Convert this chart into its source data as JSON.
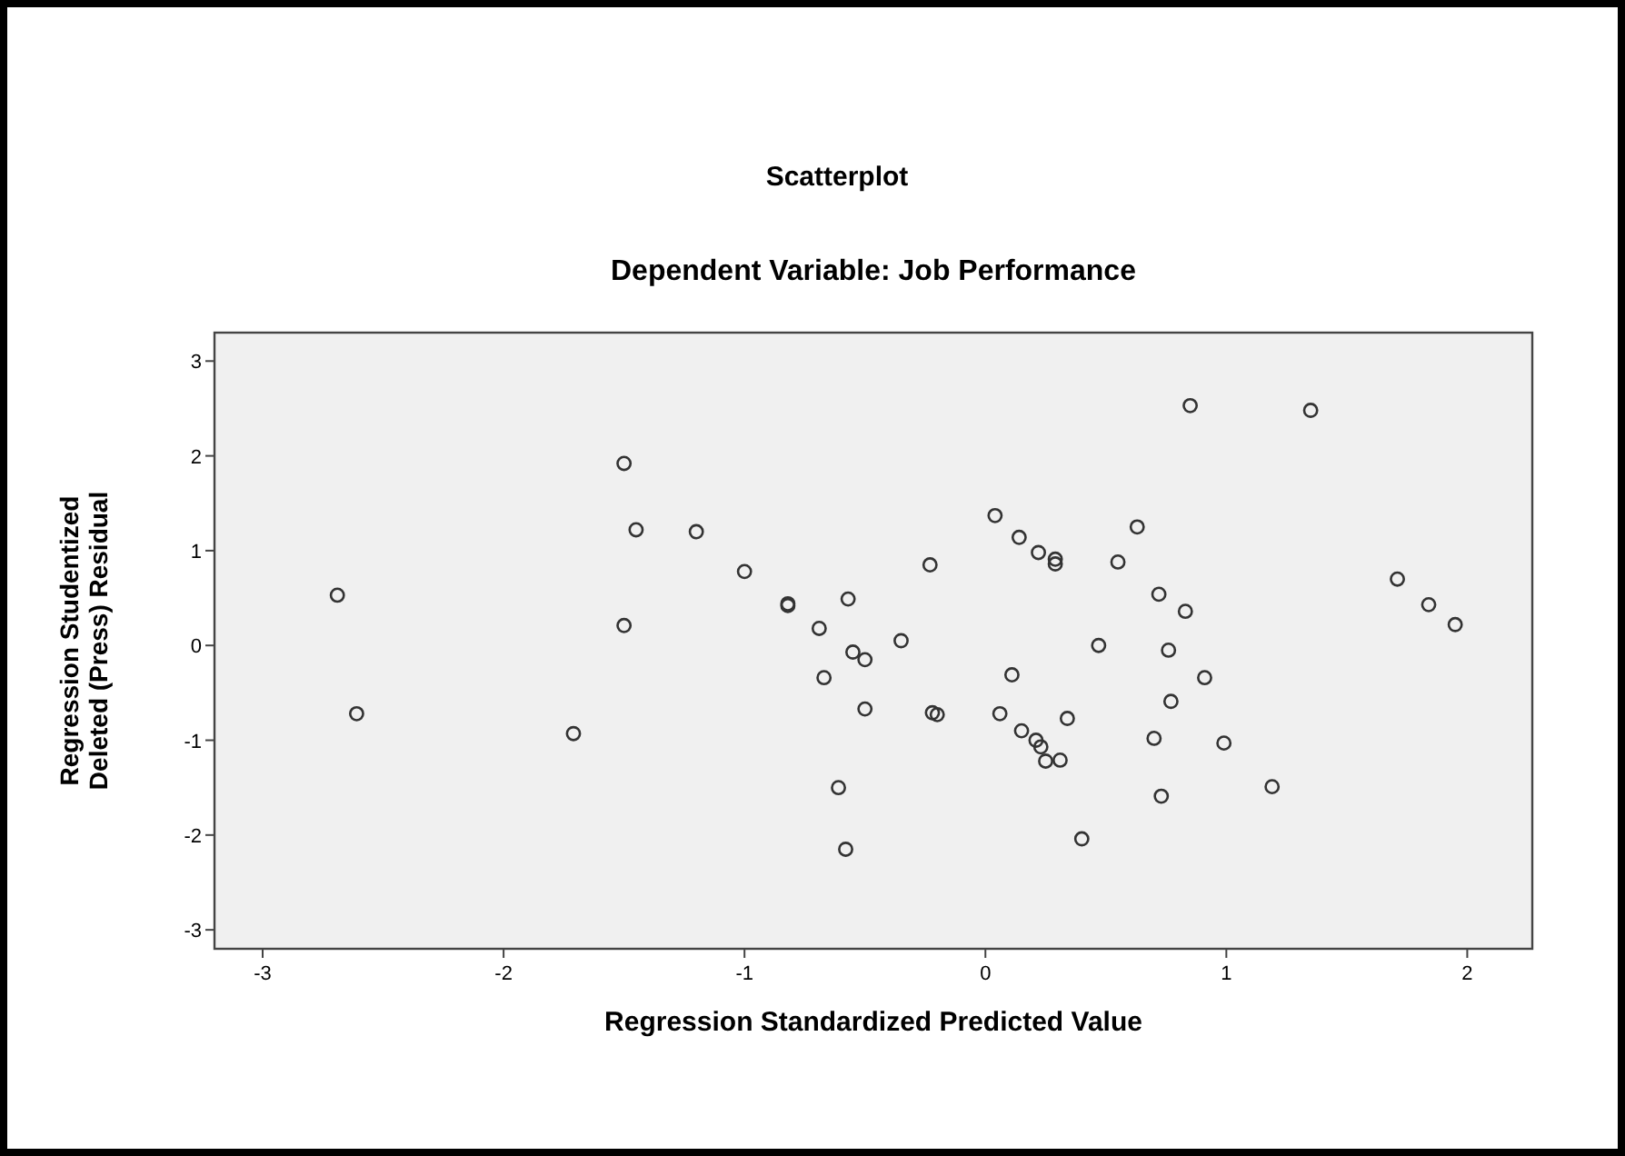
{
  "chart_data": {
    "type": "scatter",
    "title": "Scatterplot",
    "subtitle": "Dependent Variable: Job Performance",
    "xlabel": "Regression Standardized Predicted Value",
    "ylabel": "Regression Studentized Deleted (Press) Residual",
    "xlim": [
      -3.2,
      2.27
    ],
    "ylim": [
      -3.2,
      3.3
    ],
    "xticks": [
      -3,
      -2,
      -1,
      0,
      1,
      2
    ],
    "yticks": [
      -3,
      -2,
      -1,
      0,
      1,
      2,
      3
    ],
    "grid": false,
    "marker": "circle",
    "series": [
      {
        "color": "#333333",
        "x": [
          -2.69,
          -2.61,
          -1.71,
          -1.5,
          -1.45,
          -1.2,
          -1.0,
          -1.5,
          0.04,
          0.14,
          0.22,
          0.29,
          0.29,
          0.63,
          0.55,
          -0.23,
          -0.82,
          -0.82,
          -0.57,
          -0.69,
          -0.35,
          -0.55,
          -0.5,
          -0.67,
          0.11,
          -0.5,
          -0.22,
          -0.2,
          0.06,
          0.34,
          0.15,
          0.21,
          0.23,
          0.25,
          0.31,
          -0.61,
          -0.58,
          0.4,
          0.47,
          0.72,
          0.76,
          0.77,
          0.7,
          0.73,
          0.83,
          0.85,
          1.35,
          0.91,
          0.99,
          1.19,
          1.71,
          1.84,
          1.95
        ],
        "values": [
          0.53,
          -0.72,
          -0.93,
          1.92,
          1.22,
          1.2,
          0.78,
          0.21,
          1.37,
          1.14,
          0.98,
          0.91,
          0.86,
          1.25,
          0.88,
          0.85,
          0.42,
          0.44,
          0.49,
          0.18,
          0.05,
          -0.07,
          -0.15,
          -0.34,
          -0.31,
          -0.67,
          -0.71,
          -0.73,
          -0.72,
          -0.77,
          -0.9,
          -1.0,
          -1.07,
          -1.22,
          -1.21,
          -1.5,
          -2.15,
          -2.04,
          0.0,
          0.54,
          -0.05,
          -0.59,
          -0.98,
          -1.59,
          0.36,
          2.53,
          2.48,
          -0.34,
          -1.03,
          -1.49,
          0.7,
          0.43,
          0.22
        ]
      }
    ]
  }
}
